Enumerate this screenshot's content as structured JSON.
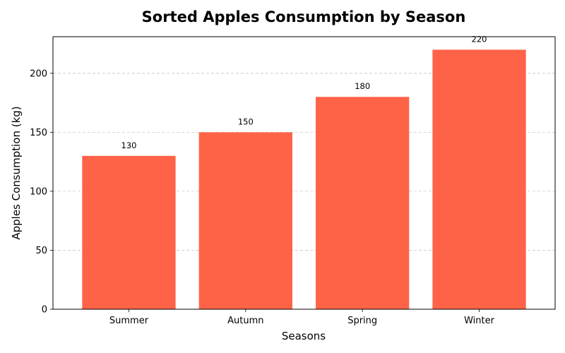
{
  "chart_data": {
    "type": "bar",
    "title": "Sorted Apples Consumption by Season",
    "xlabel": "Seasons",
    "ylabel": "Apples Consumption (kg)",
    "categories": [
      "Summer",
      "Autumn",
      "Spring",
      "Winter"
    ],
    "values": [
      130,
      150,
      180,
      220
    ],
    "data_labels": [
      "130",
      "150",
      "180",
      "220"
    ],
    "ylim": [
      0,
      231
    ],
    "yticks": [
      0,
      50,
      100,
      150,
      200
    ],
    "ytick_labels": [
      "0",
      "50",
      "100",
      "150",
      "200"
    ],
    "bar_color": "#ff6347",
    "grid": {
      "axis": "y",
      "style": "dashed",
      "color": "#c8c8c8"
    },
    "legend": "none"
  }
}
